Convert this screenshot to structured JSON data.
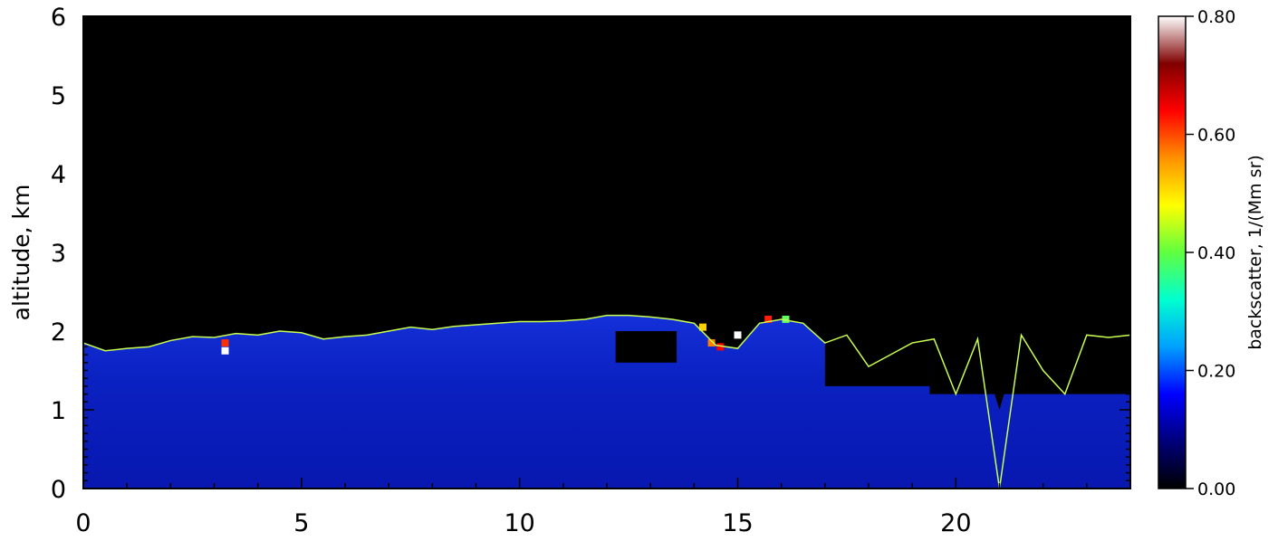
{
  "chart_data": {
    "type": "heatmap",
    "title": "",
    "xlabel": "",
    "ylabel": "altitude, km",
    "xlim": [
      0,
      24
    ],
    "ylim": [
      0,
      6
    ],
    "x_ticks": [
      0,
      5,
      10,
      15,
      20
    ],
    "y_ticks": [
      0,
      1,
      2,
      3,
      4,
      5,
      6
    ],
    "colorbar": {
      "label": "backscatter, 1/(Mm sr)",
      "range": [
        0.0,
        0.8
      ],
      "ticks": [
        "0.00",
        "0.20",
        "0.40",
        "0.60",
        "0.80"
      ],
      "colormap": [
        "#000000",
        "#00007a",
        "#0000ff",
        "#00a0ff",
        "#00ffd0",
        "#60ff40",
        "#ffff00",
        "#ff9000",
        "#ff0000",
        "#800000",
        "#ffffff"
      ]
    },
    "layer_colors": {
      "aerosol_layer": "#0a1ec8",
      "no_data": "#000000",
      "boundary_line": "#c8ff50",
      "contour": "#ffffff"
    },
    "boundary_line": {
      "x": [
        0,
        0.5,
        1,
        1.5,
        2,
        2.5,
        3,
        3.5,
        4,
        4.5,
        5,
        5.5,
        6,
        6.5,
        7,
        7.5,
        8,
        8.5,
        9,
        9.5,
        10,
        10.5,
        11,
        11.5,
        12,
        12.5,
        13,
        13.5,
        14,
        14.5,
        15,
        15.5,
        16,
        16.5,
        17,
        17.5,
        18,
        18.5,
        19,
        19.5,
        20,
        20.5,
        21,
        21.5,
        22,
        22.5,
        23,
        23.5,
        24
      ],
      "y": [
        1.85,
        1.75,
        1.78,
        1.8,
        1.88,
        1.93,
        1.92,
        1.97,
        1.95,
        2.0,
        1.98,
        1.9,
        1.93,
        1.95,
        2.0,
        2.05,
        2.02,
        2.06,
        2.08,
        2.1,
        2.12,
        2.12,
        2.13,
        2.15,
        2.2,
        2.2,
        2.18,
        2.15,
        2.1,
        1.82,
        1.78,
        2.1,
        2.15,
        2.1,
        1.85,
        1.95,
        1.55,
        1.7,
        1.85,
        1.9,
        1.2,
        1.9,
        0.0,
        1.95,
        1.5,
        1.2,
        1.95,
        1.92,
        1.95
      ]
    }
  }
}
